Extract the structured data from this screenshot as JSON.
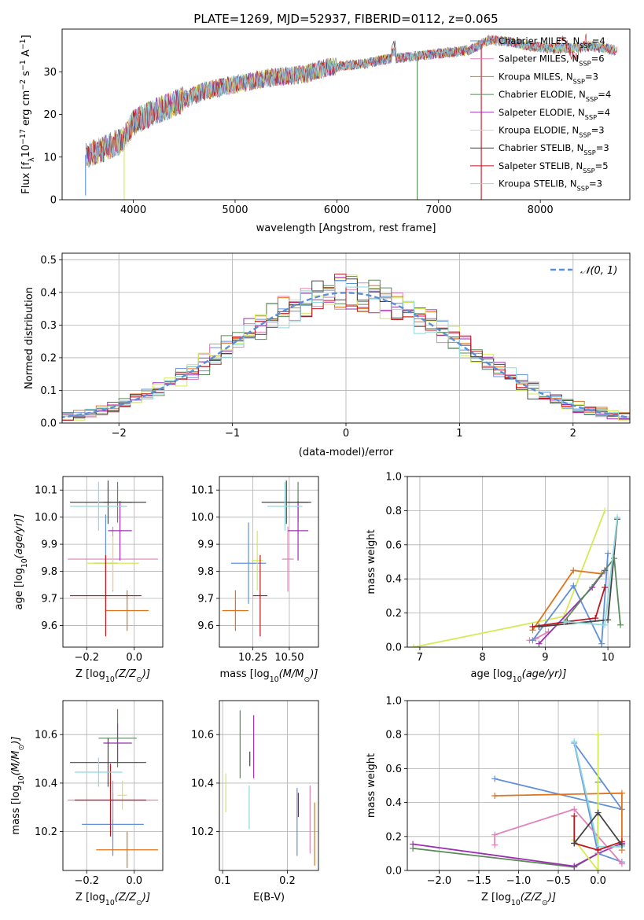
{
  "figure_title": "PLATE=1269, MJD=52937, FIBERID=0112, z=0.065",
  "colors": {
    "c0": "#6190d8",
    "c1": "#e381b8",
    "c2": "#e0731a",
    "c3": "#5a8a5a",
    "c4": "#9a30b0",
    "c5": "#d4ea55",
    "c6": "#444444",
    "c7": "#c0141c",
    "c8": "#8fd8de",
    "normal": "#5b8fd6",
    "grid": "#b0b0b0"
  },
  "chart_data": [
    {
      "id": "spectrum",
      "type": "line",
      "title": "PLATE=1269, MJD=52937, FIBERID=0112, z=0.065",
      "xlabel": "wavelength [Angstrom, rest frame]",
      "ylabel_parts": [
        "Flux [f",
        "λ",
        "10",
        "−17",
        " erg cm",
        "−2",
        " s",
        "−1",
        " A",
        "−1",
        "]"
      ],
      "xlim": [
        3300,
        8880
      ],
      "ylim": [
        0,
        40
      ],
      "xticks": [
        "4000",
        "5000",
        "6000",
        "7000",
        "8000"
      ],
      "yticks": [
        "0",
        "10",
        "20",
        "30"
      ],
      "legend_position": "top-right",
      "series": [
        {
          "name": "Chabrier MILES, N",
          "sub": "SSP",
          "tail": "=4"
        },
        {
          "name": "Salpeter MILES, N",
          "sub": "SSP",
          "tail": "=6"
        },
        {
          "name": "Kroupa MILES, N",
          "sub": "SSP",
          "tail": "=3"
        },
        {
          "name": "Chabrier ELODIE, N",
          "sub": "SSP",
          "tail": "=4"
        },
        {
          "name": "Salpeter ELODIE, N",
          "sub": "SSP",
          "tail": "=4"
        },
        {
          "name": "Kroupa ELODIE, N",
          "sub": "SSP",
          "tail": "=3"
        },
        {
          "name": "Chabrier STELIB, N",
          "sub": "SSP",
          "tail": "=3"
        },
        {
          "name": "Salpeter STELIB, N",
          "sub": "SSP",
          "tail": "=5"
        },
        {
          "name": "Kroupa STELIB, N",
          "sub": "SSP",
          "tail": "=3"
        }
      ],
      "continuum": {
        "x": [
          3550,
          3700,
          3900,
          4000,
          4150,
          4300,
          4500,
          4700,
          4900,
          5100,
          5300,
          5500,
          5700,
          5900,
          6100,
          6300,
          6500,
          6700,
          6900,
          7100,
          7300,
          7500,
          7700,
          7900,
          8100,
          8300,
          8500,
          8750
        ],
        "y": [
          10.5,
          12,
          14,
          18,
          20,
          21.5,
          23.5,
          25.5,
          26.5,
          27.5,
          28.5,
          29,
          29.5,
          31,
          31.5,
          32,
          33,
          33.5,
          34,
          34.5,
          35,
          37.5,
          37,
          36,
          35.5,
          35.5,
          36,
          35
        ]
      },
      "dips": [
        {
          "color_index": 0,
          "x": 3530,
          "y": 1
        },
        {
          "color_index": 5,
          "x": 3910,
          "y": 0
        },
        {
          "color_index": 3,
          "x": 6790,
          "y": 0
        },
        {
          "color_index": 7,
          "x": 7420,
          "y": 0
        }
      ]
    },
    {
      "id": "residual-histogram",
      "type": "line",
      "xlabel": "(data-model)/error",
      "ylabel": "Normed distribution",
      "xlim": [
        -2.5,
        2.5
      ],
      "ylim": [
        0,
        0.52
      ],
      "xticks": [
        "−2",
        "−1",
        "0",
        "1",
        "2"
      ],
      "yticks": [
        "0.0",
        "0.1",
        "0.2",
        "0.3",
        "0.4",
        "0.5"
      ],
      "bin_width": 0.1,
      "reference_label": "𝒩(0, 1)",
      "legend_position": "top-right"
    },
    {
      "id": "age-vs-metallicity",
      "type": "scatter",
      "xlabel_parts": [
        "Z [log",
        "10",
        "(Z/Z",
        "⊙",
        ")]"
      ],
      "ylabel_parts": [
        "age  [log",
        "10",
        "(age/yr)]"
      ],
      "xlim": [
        -0.3,
        0.12
      ],
      "ylim": [
        9.52,
        10.15
      ],
      "xticks": [
        "−0.2",
        "0.0"
      ],
      "yticks": [
        "9.6",
        "9.7",
        "9.8",
        "9.9",
        "10.0",
        "10.1"
      ],
      "points": [
        {
          "c": 0,
          "x": -0.12,
          "y": 9.83,
          "xe": 0.05,
          "ye": 0.18
        },
        {
          "c": 1,
          "x": -0.09,
          "y": 9.845,
          "xe": 0.19,
          "ye": 0.12
        },
        {
          "c": 2,
          "x": -0.03,
          "y": 9.655,
          "xe": 0.09,
          "ye": 0.075
        },
        {
          "c": 3,
          "x": -0.07,
          "y": 10.055,
          "xe": 0.06,
          "ye": 0.075
        },
        {
          "c": 4,
          "x": -0.06,
          "y": 9.95,
          "xe": 0.05,
          "ye": 0.11
        },
        {
          "c": 5,
          "x": -0.09,
          "y": 9.83,
          "xe": 0.11,
          "ye": 0.1
        },
        {
          "c": 6,
          "x": -0.11,
          "y": 10.055,
          "xe": 0.16,
          "ye": 0.08
        },
        {
          "c": 7,
          "x": -0.12,
          "y": 9.71,
          "xe": 0.15,
          "ye": 0.15
        },
        {
          "c": 8,
          "x": -0.15,
          "y": 10.04,
          "xe": 0.12,
          "ye": 0.09
        }
      ]
    },
    {
      "id": "age-vs-mass",
      "type": "scatter",
      "xlabel_parts": [
        "mass [log",
        "10",
        "(M/M",
        "⊙",
        ")]"
      ],
      "ylabel_parts": [],
      "xlim": [
        10.02,
        10.7
      ],
      "ylim": [
        9.52,
        10.15
      ],
      "xticks": [
        "10.25",
        "10.50"
      ],
      "yticks": [
        "9.6",
        "9.7",
        "9.8",
        "9.9",
        "10.0",
        "10.1"
      ],
      "points": [
        {
          "c": 0,
          "x": 10.22,
          "y": 9.83,
          "xe": 0.12,
          "ye": 0.15
        },
        {
          "c": 1,
          "x": 10.49,
          "y": 9.845,
          "xe": 0.04,
          "ye": 0.12
        },
        {
          "c": 2,
          "x": 10.13,
          "y": 9.655,
          "xe": 0.09,
          "ye": 0.075
        },
        {
          "c": 3,
          "x": 10.56,
          "y": 10.055,
          "xe": 0.07,
          "ye": 0.075
        },
        {
          "c": 4,
          "x": 10.56,
          "y": 9.95,
          "xe": 0.07,
          "ye": 0.11
        },
        {
          "c": 5,
          "x": 10.28,
          "y": 9.84,
          "xe": 0.04,
          "ye": 0.11
        },
        {
          "c": 6,
          "x": 10.48,
          "y": 10.055,
          "xe": 0.17,
          "ye": 0.08
        },
        {
          "c": 7,
          "x": 10.3,
          "y": 9.71,
          "xe": 0.05,
          "ye": 0.15
        },
        {
          "c": 8,
          "x": 10.47,
          "y": 10.04,
          "xe": 0.12,
          "ye": 0.09
        }
      ]
    },
    {
      "id": "mass-weight-vs-age",
      "type": "line",
      "xlabel_parts": [
        "age  [log",
        "10",
        "(age/yr)]"
      ],
      "ylabel": "mass weight",
      "xlim": [
        6.8,
        10.35
      ],
      "ylim": [
        0,
        1
      ],
      "xticks": [
        "7",
        "8",
        "9",
        "10"
      ],
      "yticks": [
        "0.0",
        "0.2",
        "0.4",
        "0.6",
        "0.8",
        "1.0"
      ],
      "series": [
        {
          "c": 1,
          "x": [
            8.75,
            8.85,
            9.05
          ],
          "y": [
            0.04,
            0.05,
            0.09
          ]
        },
        {
          "c": 5,
          "x": [
            6.9,
            9.3,
            9.95
          ],
          "y": [
            0.0,
            0.18,
            0.8
          ]
        },
        {
          "c": 2,
          "x": [
            8.8,
            9.45,
            9.9
          ],
          "y": [
            0.1,
            0.45,
            0.43
          ]
        },
        {
          "c": 0,
          "x": [
            8.8,
            9.45,
            9.9,
            10.0
          ],
          "y": [
            0.04,
            0.36,
            0.02,
            0.55
          ]
        },
        {
          "c": 4,
          "x": [
            8.9,
            9.75,
            9.95
          ],
          "y": [
            0.02,
            0.35,
            0.45
          ]
        },
        {
          "c": 7,
          "x": [
            8.8,
            9.35,
            9.8,
            9.95
          ],
          "y": [
            0.12,
            0.15,
            0.17,
            0.35
          ]
        },
        {
          "c": 6,
          "x": [
            8.9,
            10.0,
            10.15
          ],
          "y": [
            0.12,
            0.16,
            0.75
          ]
        },
        {
          "c": 3,
          "x": [
            9.3,
            10.1,
            10.2
          ],
          "y": [
            0.15,
            0.52,
            0.13
          ]
        },
        {
          "c": 8,
          "x": [
            9.3,
            9.95,
            10.15
          ],
          "y": [
            0.15,
            0.13,
            0.76
          ]
        }
      ]
    },
    {
      "id": "mass-vs-metallicity",
      "type": "scatter",
      "xlabel_parts": [
        "Z [log",
        "10",
        "(Z/Z",
        "⊙",
        ")]"
      ],
      "ylabel_parts": [
        "mass [log",
        "10",
        "(M/M",
        "⊙",
        ")]"
      ],
      "xlim": [
        -0.3,
        0.12
      ],
      "ylim": [
        10.04,
        10.74
      ],
      "xticks": [
        "−0.2",
        "0.0"
      ],
      "yticks": [
        "10.2",
        "10.4",
        "10.6"
      ],
      "points": [
        {
          "c": 0,
          "x": -0.09,
          "y": 10.23,
          "xe": 0.13,
          "ye": 0.13
        },
        {
          "c": 1,
          "x": -0.09,
          "y": 10.33,
          "xe": 0.19,
          "ye": 0.08
        },
        {
          "c": 2,
          "x": -0.03,
          "y": 10.125,
          "xe": 0.13,
          "ye": 0.075
        },
        {
          "c": 3,
          "x": -0.07,
          "y": 10.585,
          "xe": 0.08,
          "ye": 0.12
        },
        {
          "c": 4,
          "x": -0.07,
          "y": 10.565,
          "xe": 0.06,
          "ye": 0.08
        },
        {
          "c": 5,
          "x": -0.05,
          "y": 10.35,
          "xe": 0.02,
          "ye": 0.06
        },
        {
          "c": 6,
          "x": -0.11,
          "y": 10.485,
          "xe": 0.16,
          "ye": 0.1
        },
        {
          "c": 7,
          "x": -0.1,
          "y": 10.33,
          "xe": 0.15,
          "ye": 0.15
        },
        {
          "c": 8,
          "x": -0.15,
          "y": 10.445,
          "xe": 0.1,
          "ye": 0.06
        }
      ]
    },
    {
      "id": "mass-vs-extinction",
      "type": "scatter",
      "xlabel": "E(B-V)",
      "ylabel_parts": [],
      "xlim": [
        0.095,
        0.248
      ],
      "ylim": [
        10.04,
        10.74
      ],
      "xticks": [
        "0.1",
        "0.2"
      ],
      "yticks": [
        "10.2",
        "10.4",
        "10.6"
      ],
      "points": [
        {
          "c": 0,
          "x": 0.215,
          "y": 10.24,
          "ye": 0.14
        },
        {
          "c": 1,
          "x": 0.235,
          "y": 10.25,
          "ye": 0.14
        },
        {
          "c": 2,
          "x": 0.242,
          "y": 10.19,
          "ye": 0.13
        },
        {
          "c": 3,
          "x": 0.127,
          "y": 10.56,
          "ye": 0.14
        },
        {
          "c": 4,
          "x": 0.148,
          "y": 10.55,
          "ye": 0.13
        },
        {
          "c": 5,
          "x": 0.105,
          "y": 10.36,
          "ye": 0.08
        },
        {
          "c": 6,
          "x": 0.142,
          "y": 10.5,
          "ye": 0.03
        },
        {
          "c": 7,
          "x": 0.217,
          "y": 10.31,
          "ye": 0.05
        },
        {
          "c": 8,
          "x": 0.141,
          "y": 10.3,
          "ye": 0.09
        }
      ]
    },
    {
      "id": "mass-weight-vs-metallicity",
      "type": "line",
      "xlabel_parts": [
        "Z [log",
        "10",
        "(Z/Z",
        "⊙",
        ")]"
      ],
      "ylabel": "mass weight",
      "xlim": [
        -2.4,
        0.4
      ],
      "ylim": [
        0,
        1
      ],
      "xticks": [
        "−2.0",
        "−1.5",
        "−1.0",
        "−0.5",
        "0.0"
      ],
      "yticks": [
        "0.0",
        "0.2",
        "0.4",
        "0.6",
        "0.8",
        "1.0"
      ],
      "series": [
        {
          "c": 3,
          "x": [
            -2.33,
            -0.3,
            0.0,
            0.0
          ],
          "y": [
            0.13,
            0.02,
            0.1,
            0.52
          ]
        },
        {
          "c": 4,
          "x": [
            -2.33,
            -0.3,
            0.0,
            0.3
          ],
          "y": [
            0.155,
            0.025,
            0.1,
            0.16
          ]
        },
        {
          "c": 0,
          "x": [
            -1.3,
            0.3,
            -0.3,
            0.0,
            0.3
          ],
          "y": [
            0.54,
            0.36,
            0.75,
            0.1,
            0.05
          ]
        },
        {
          "c": 2,
          "x": [
            -1.3,
            0.3,
            0.3
          ],
          "y": [
            0.44,
            0.455,
            0.12
          ]
        },
        {
          "c": 1,
          "x": [
            -1.3,
            -1.3,
            -0.3,
            0.3
          ],
          "y": [
            0.15,
            0.21,
            0.36,
            0.04
          ]
        },
        {
          "c": 5,
          "x": [
            0.0,
            0.0,
            -0.3
          ],
          "y": [
            0.8,
            0.0,
            0.18
          ]
        },
        {
          "c": 8,
          "x": [
            -0.3,
            0.0,
            0.3
          ],
          "y": [
            0.76,
            0.14,
            0.14
          ]
        },
        {
          "c": 7,
          "x": [
            -0.3,
            -0.3,
            0.0,
            0.3
          ],
          "y": [
            0.32,
            0.16,
            0.12,
            0.17
          ]
        },
        {
          "c": 6,
          "x": [
            -0.3,
            0.0,
            0.3
          ],
          "y": [
            0.16,
            0.34,
            0.15
          ]
        }
      ]
    }
  ]
}
